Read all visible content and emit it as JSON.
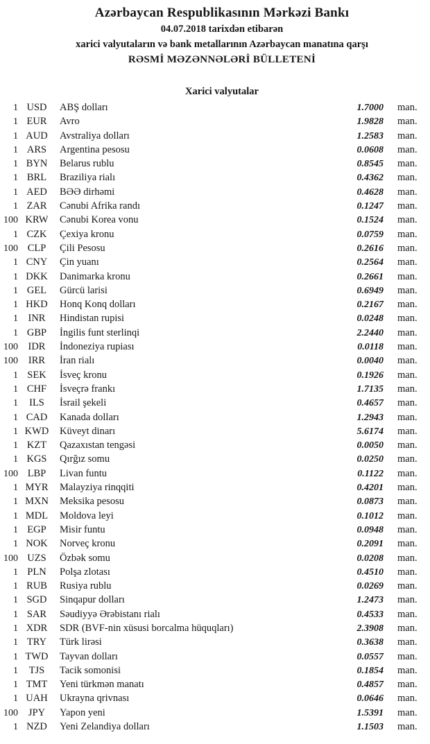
{
  "header": {
    "title": "Azərbaycan Respublikasının Mərkəzi Bankı",
    "date_line": "04.07.2018 tarixdən etibarən",
    "subtitle": "xarici valyutaların və bank metallarının Azərbaycan manatına qarşı",
    "bulletin_title": "RƏSMİ MƏZƏNNƏLƏRİ BÜLLETENİ"
  },
  "section": {
    "title": "Xarici valyutalar"
  },
  "table": {
    "unit_label": "man.",
    "rows": [
      {
        "amount": "1",
        "code": "USD",
        "name": "ABŞ dolları",
        "rate": "1.7000"
      },
      {
        "amount": "1",
        "code": "EUR",
        "name": "Avro",
        "rate": "1.9828"
      },
      {
        "amount": "1",
        "code": "AUD",
        "name": "Avstraliya dolları",
        "rate": "1.2583"
      },
      {
        "amount": "1",
        "code": "ARS",
        "name": "Argentina pesosu",
        "rate": "0.0608"
      },
      {
        "amount": "1",
        "code": "BYN",
        "name": "Belarus rublu",
        "rate": "0.8545"
      },
      {
        "amount": "1",
        "code": "BRL",
        "name": "Braziliya rialı",
        "rate": "0.4362"
      },
      {
        "amount": "1",
        "code": "AED",
        "name": "BƏƏ dirhəmi",
        "rate": "0.4628"
      },
      {
        "amount": "1",
        "code": "ZAR",
        "name": "Cənubi Afrika randı",
        "rate": "0.1247"
      },
      {
        "amount": "100",
        "code": "KRW",
        "name": "Cənubi Korea vonu",
        "rate": "0.1524"
      },
      {
        "amount": "1",
        "code": "CZK",
        "name": "Çexiya kronu",
        "rate": "0.0759"
      },
      {
        "amount": "100",
        "code": "CLP",
        "name": "Çili Pesosu",
        "rate": "0.2616"
      },
      {
        "amount": "1",
        "code": "CNY",
        "name": "Çin yuanı",
        "rate": "0.2564"
      },
      {
        "amount": "1",
        "code": "DKK",
        "name": "Danimarka kronu",
        "rate": "0.2661"
      },
      {
        "amount": "1",
        "code": "GEL",
        "name": "Gürcü larisi",
        "rate": "0.6949"
      },
      {
        "amount": "1",
        "code": "HKD",
        "name": "Honq Konq dolları",
        "rate": "0.2167"
      },
      {
        "amount": "1",
        "code": "INR",
        "name": "Hindistan rupisi",
        "rate": "0.0248"
      },
      {
        "amount": "1",
        "code": "GBP",
        "name": "İngilis funt sterlinqi",
        "rate": "2.2440"
      },
      {
        "amount": "100",
        "code": "IDR",
        "name": "İndoneziya rupiası",
        "rate": "0.0118"
      },
      {
        "amount": "100",
        "code": "IRR",
        "name": "İran rialı",
        "rate": "0.0040"
      },
      {
        "amount": "1",
        "code": "SEK",
        "name": "İsveç kronu",
        "rate": "0.1926"
      },
      {
        "amount": "1",
        "code": "CHF",
        "name": "İsveçrə frankı",
        "rate": "1.7135"
      },
      {
        "amount": "1",
        "code": "ILS",
        "name": "İsrail şekeli",
        "rate": "0.4657"
      },
      {
        "amount": "1",
        "code": "CAD",
        "name": "Kanada dolları",
        "rate": "1.2943"
      },
      {
        "amount": "1",
        "code": "KWD",
        "name": "Küveyt dinarı",
        "rate": "5.6174"
      },
      {
        "amount": "1",
        "code": "KZT",
        "name": "Qazaxıstan tengəsi",
        "rate": "0.0050"
      },
      {
        "amount": "1",
        "code": "KGS",
        "name": "Qırğız somu",
        "rate": "0.0250"
      },
      {
        "amount": "100",
        "code": "LBP",
        "name": "Livan funtu",
        "rate": "0.1122"
      },
      {
        "amount": "1",
        "code": "MYR",
        "name": "Malayziya rinqqiti",
        "rate": "0.4201"
      },
      {
        "amount": "1",
        "code": "MXN",
        "name": "Meksika pesosu",
        "rate": "0.0873"
      },
      {
        "amount": "1",
        "code": "MDL",
        "name": "Moldova leyi",
        "rate": "0.1012"
      },
      {
        "amount": "1",
        "code": "EGP",
        "name": "Misir funtu",
        "rate": "0.0948"
      },
      {
        "amount": "1",
        "code": "NOK",
        "name": "Norveç kronu",
        "rate": "0.2091"
      },
      {
        "amount": "100",
        "code": "UZS",
        "name": "Özbək somu",
        "rate": "0.0208"
      },
      {
        "amount": "1",
        "code": "PLN",
        "name": "Polşa zlotası",
        "rate": "0.4510"
      },
      {
        "amount": "1",
        "code": "RUB",
        "name": "Rusiya rublu",
        "rate": "0.0269"
      },
      {
        "amount": "1",
        "code": "SGD",
        "name": "Sinqapur dolları",
        "rate": "1.2473"
      },
      {
        "amount": "1",
        "code": "SAR",
        "name": "Səudiyyə Ərəbistanı rialı",
        "rate": "0.4533"
      },
      {
        "amount": "1",
        "code": "XDR",
        "name": "SDR (BVF-nin xüsusi borcalma hüquqları)",
        "rate": "2.3908"
      },
      {
        "amount": "1",
        "code": "TRY",
        "name": "Türk lirəsi",
        "rate": "0.3638"
      },
      {
        "amount": "1",
        "code": "TWD",
        "name": "Tayvan dolları",
        "rate": "0.0557"
      },
      {
        "amount": "1",
        "code": "TJS",
        "name": "Tacik somonisi",
        "rate": "0.1854"
      },
      {
        "amount": "1",
        "code": "TMT",
        "name": "Yeni türkmən manatı",
        "rate": "0.4857"
      },
      {
        "amount": "1",
        "code": "UAH",
        "name": "Ukrayna qrivnası",
        "rate": "0.0646"
      },
      {
        "amount": "100",
        "code": "JPY",
        "name": "Yapon yeni",
        "rate": "1.5391"
      },
      {
        "amount": "1",
        "code": "NZD",
        "name": "Yeni Zelandiya dolları",
        "rate": "1.1503"
      }
    ]
  }
}
